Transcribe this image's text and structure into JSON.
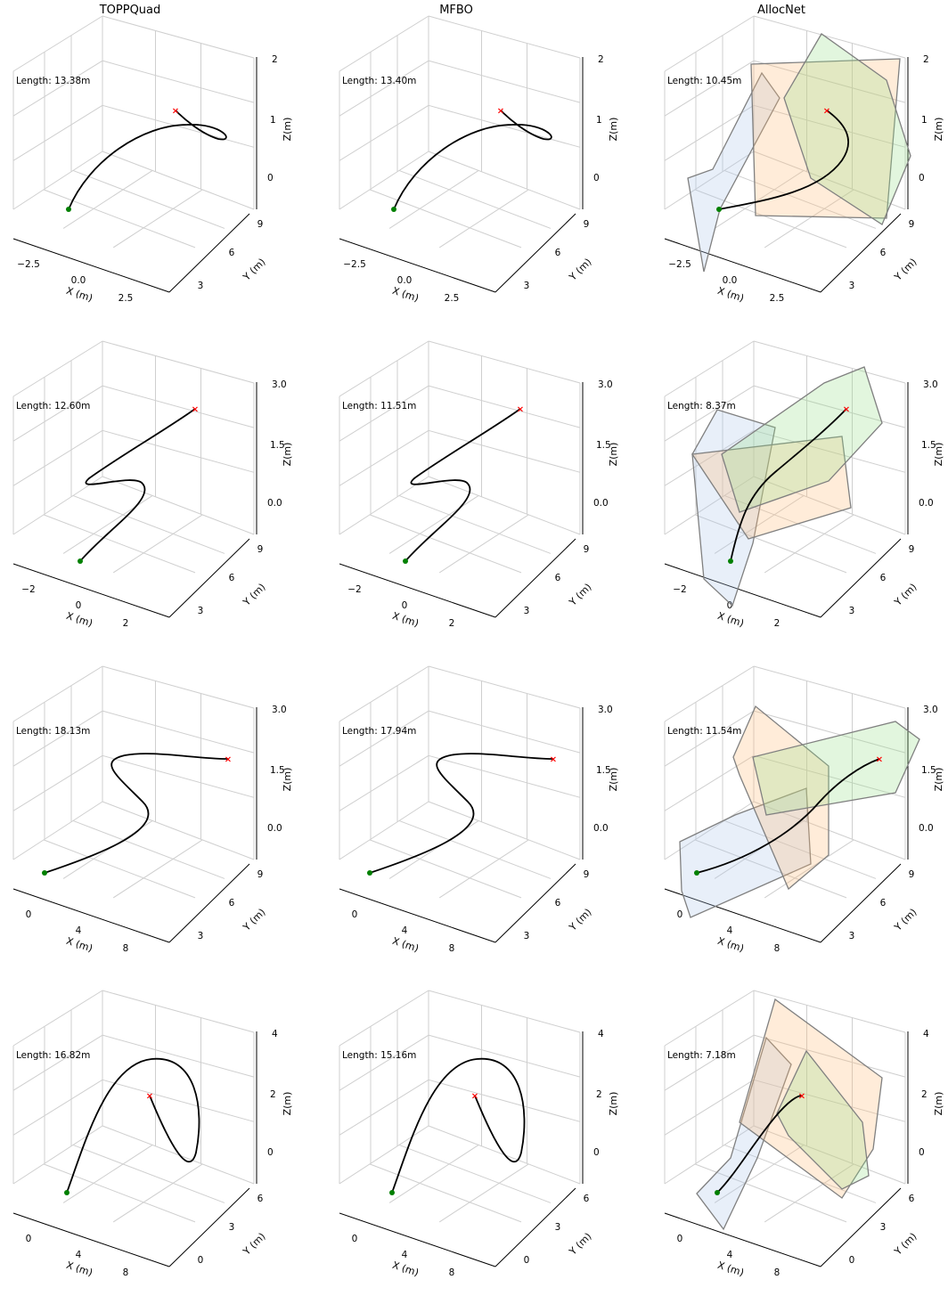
{
  "titles": [
    "TOPPQuad",
    "MFBO",
    "AllocNet"
  ],
  "chart_data": [
    {
      "type": "line",
      "method": "TOPPQuad",
      "length_label": "Length: 13.38m",
      "xlabel": "X (m)",
      "ylabel": "Y (m)",
      "zlabel": "Z(m)",
      "xticks": [
        "−2.5",
        "0.0",
        "2.5"
      ],
      "yticks": [
        "3",
        "6",
        "9"
      ],
      "zticks": [
        "0",
        "1",
        "2"
      ],
      "start": {
        "x": -0.2,
        "y": 0.3,
        "z": 0.0,
        "color": "#008000"
      },
      "goal": {
        "x": 0.1,
        "y": 6.2,
        "z": 1.1,
        "color": "#ff0000"
      }
    },
    {
      "type": "line",
      "method": "MFBO",
      "length_label": "Length: 13.40m",
      "xlabel": "X (m)",
      "ylabel": "Y (m)",
      "zlabel": "Z(m)",
      "xticks": [
        "−2.5",
        "0.0",
        "2.5"
      ],
      "yticks": [
        "3",
        "6",
        "9"
      ],
      "zticks": [
        "0",
        "1",
        "2"
      ],
      "start": {
        "x": -0.2,
        "y": 0.3,
        "z": 0.0,
        "color": "#008000"
      },
      "goal": {
        "x": 0.1,
        "y": 6.2,
        "z": 1.1,
        "color": "#ff0000"
      }
    },
    {
      "type": "line",
      "method": "AllocNet",
      "length_label": "Length: 10.45m",
      "xlabel": "X (m)",
      "ylabel": "Y (m)",
      "zlabel": "Z(m)",
      "xticks": [
        "−2.5",
        "0.0",
        "2.5"
      ],
      "yticks": [
        "3",
        "6",
        "9"
      ],
      "zticks": [
        "0",
        "1",
        "2"
      ],
      "start": {
        "x": -0.2,
        "y": 0.3,
        "z": 0.0,
        "color": "#008000"
      },
      "goal": {
        "x": 0.1,
        "y": 6.2,
        "z": 1.1,
        "color": "#ff0000"
      },
      "corridor_colors": [
        "#aec7e8",
        "#ffbb78",
        "#98df8a"
      ]
    },
    {
      "type": "line",
      "method": "TOPPQuad",
      "length_label": "Length: 12.60m",
      "xlabel": "X (m)",
      "ylabel": "Y (m)",
      "zlabel": "Z(m)",
      "xticks": [
        "−2",
        "0",
        "2"
      ],
      "yticks": [
        "3",
        "6",
        "9"
      ],
      "zticks": [
        "0.0",
        "1.5",
        "3.0"
      ]
    },
    {
      "type": "line",
      "method": "MFBO",
      "length_label": "Length: 11.51m",
      "xlabel": "X (m)",
      "ylabel": "Y (m)",
      "zlabel": "Z(m)",
      "xticks": [
        "−2",
        "0",
        "2"
      ],
      "yticks": [
        "3",
        "6",
        "9"
      ],
      "zticks": [
        "0.0",
        "1.5",
        "3.0"
      ]
    },
    {
      "type": "line",
      "method": "AllocNet",
      "length_label": "Length: 8.37m",
      "xlabel": "X (m)",
      "ylabel": "Y (m)",
      "zlabel": "Z(m)",
      "xticks": [
        "−2",
        "0",
        "2"
      ],
      "yticks": [
        "3",
        "6",
        "9"
      ],
      "zticks": [
        "0.0",
        "1.5",
        "3.0"
      ],
      "corridor_colors": [
        "#aec7e8",
        "#ffbb78",
        "#98df8a"
      ]
    },
    {
      "type": "line",
      "method": "TOPPQuad",
      "length_label": "Length: 18.13m",
      "xlabel": "X (m)",
      "ylabel": "Y (m)",
      "zlabel": "Z(m)",
      "xticks": [
        "0",
        "4",
        "8"
      ],
      "yticks": [
        "3",
        "6",
        "9"
      ],
      "zticks": [
        "0.0",
        "1.5",
        "3.0"
      ]
    },
    {
      "type": "line",
      "method": "MFBO",
      "length_label": "Length: 17.94m",
      "xlabel": "X (m)",
      "ylabel": "Y (m)",
      "zlabel": "Z(m)",
      "xticks": [
        "0",
        "4",
        "8"
      ],
      "yticks": [
        "3",
        "6",
        "9"
      ],
      "zticks": [
        "0.0",
        "1.5",
        "3.0"
      ]
    },
    {
      "type": "line",
      "method": "AllocNet",
      "length_label": "Length: 11.54m",
      "xlabel": "X (m)",
      "ylabel": "Y (m)",
      "zlabel": "Z(m)",
      "xticks": [
        "0",
        "4",
        "8"
      ],
      "yticks": [
        "3",
        "6",
        "9"
      ],
      "zticks": [
        "0.0",
        "1.5",
        "3.0"
      ],
      "corridor_colors": [
        "#aec7e8",
        "#ffbb78",
        "#98df8a"
      ]
    },
    {
      "type": "line",
      "method": "TOPPQuad",
      "length_label": "Length: 16.82m",
      "xlabel": "X (m)",
      "ylabel": "Y (m)",
      "zlabel": "Z(m)",
      "xticks": [
        "0",
        "4",
        "8"
      ],
      "yticks": [
        "0",
        "3",
        "6"
      ],
      "zticks": [
        "0",
        "2",
        "4"
      ]
    },
    {
      "type": "line",
      "method": "MFBO",
      "length_label": "Length: 15.16m",
      "xlabel": "X (m)",
      "ylabel": "Y (m)",
      "zlabel": "Z(m)",
      "xticks": [
        "0",
        "4",
        "8"
      ],
      "yticks": [
        "0",
        "3",
        "6"
      ],
      "zticks": [
        "0",
        "2",
        "4"
      ]
    },
    {
      "type": "line",
      "method": "AllocNet",
      "length_label": "Length: 7.18m",
      "xlabel": "X (m)",
      "ylabel": "Y (m)",
      "zlabel": "Z(m)",
      "xticks": [
        "0",
        "4",
        "8"
      ],
      "yticks": [
        "0",
        "3",
        "6"
      ],
      "zticks": [
        "0",
        "2",
        "4"
      ],
      "corridor_colors": [
        "#aec7e8",
        "#ffbb78",
        "#98df8a"
      ]
    }
  ]
}
